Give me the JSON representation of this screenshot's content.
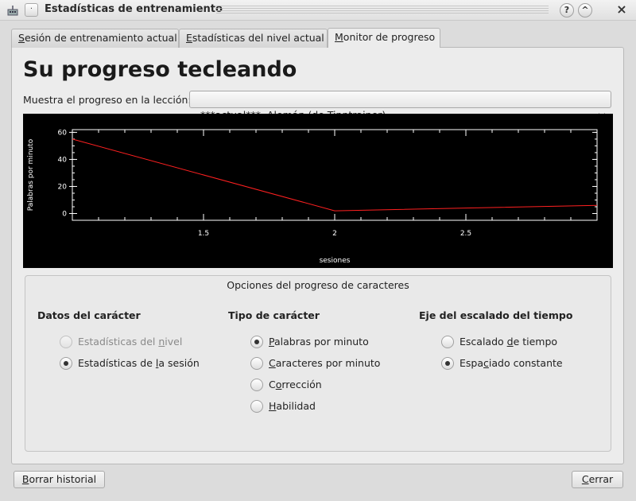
{
  "window": {
    "title": "Estadísticas de entrenamiento",
    "help_glyph": "?",
    "shade_glyph": "^",
    "close_glyph": "×",
    "menu_glyph": "·"
  },
  "tabs": [
    {
      "pre": "",
      "u": "S",
      "post": "esión de entrenamiento actual",
      "active": false
    },
    {
      "pre": "",
      "u": "E",
      "post": "stadísticas del nivel actual",
      "active": false
    },
    {
      "pre": "",
      "u": "M",
      "post": "onitor de progreso",
      "active": true
    }
  ],
  "main": {
    "heading": "Su progreso tecleando",
    "lesson_label": "Muestra el progreso en la lección:",
    "lesson_value": "***actual***  Alemán (de Tipptrainer)"
  },
  "chart_data": {
    "type": "line",
    "ylabel": "Palabras por minuto",
    "xlabel": "sesiones",
    "xlim": [
      1,
      3
    ],
    "ylim": [
      -5,
      62
    ],
    "yticks": [
      0,
      20,
      40,
      60
    ],
    "xticks": [
      1.5,
      2,
      2.5
    ],
    "xtick_labels": [
      "1.5",
      "2",
      "2.5"
    ],
    "ytick_labels": [
      "0",
      "20",
      "40",
      "60"
    ],
    "series": [
      {
        "color": "#ff2020",
        "x": [
          1,
          2,
          2.5,
          3
        ],
        "y": [
          55,
          2,
          4,
          6
        ]
      }
    ],
    "background": "#000000"
  },
  "options": {
    "title": "Opciones del progreso de caracteres",
    "columns": [
      {
        "title": "Datos del carácter",
        "items": [
          {
            "pre": "Estadísticas del ",
            "u": "n",
            "post": "ivel",
            "checked": false,
            "disabled": true
          },
          {
            "pre": "Estadísticas de ",
            "u": "l",
            "post": "a sesión",
            "checked": true,
            "disabled": false
          }
        ]
      },
      {
        "title": "Tipo de carácter",
        "items": [
          {
            "pre": "",
            "u": "P",
            "post": "alabras por minuto",
            "checked": true,
            "disabled": false
          },
          {
            "pre": "",
            "u": "C",
            "post": "aracteres por minuto",
            "checked": false,
            "disabled": false
          },
          {
            "pre": "C",
            "u": "o",
            "post": "rrección",
            "checked": false,
            "disabled": false
          },
          {
            "pre": "",
            "u": "H",
            "post": "abilidad",
            "checked": false,
            "disabled": false
          }
        ]
      },
      {
        "title": "Eje del escalado del tiempo",
        "items": [
          {
            "pre": "Escalado ",
            "u": "d",
            "post": "e tiempo",
            "checked": false,
            "disabled": false
          },
          {
            "pre": "Espa",
            "u": "c",
            "post": "iado constante",
            "checked": true,
            "disabled": false
          }
        ]
      }
    ]
  },
  "buttons": {
    "clear_pre": "",
    "clear_u": "B",
    "clear_post": "orrar historial",
    "close_pre": "",
    "close_u": "C",
    "close_post": "errar"
  }
}
